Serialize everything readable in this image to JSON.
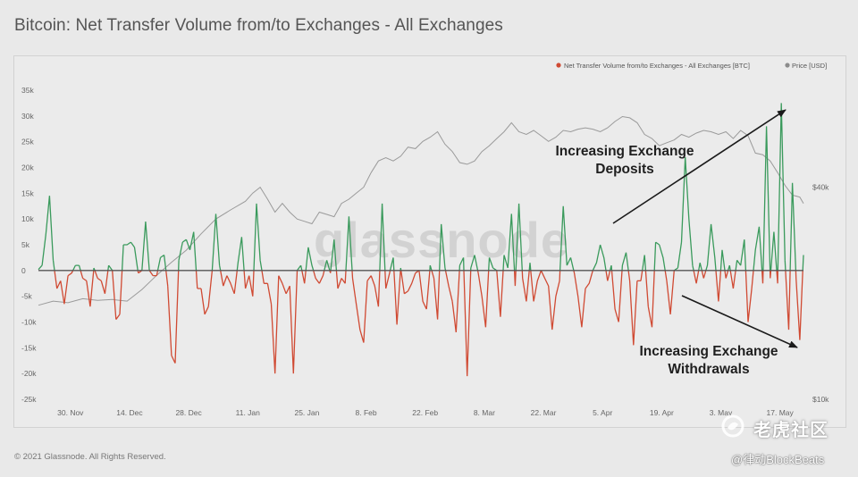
{
  "page": {
    "title": "Bitcoin: Net Transfer Volume from/to Exchanges - All Exchanges",
    "copyright": "© 2021 Glassnode. All Rights Reserved.",
    "watermark_text": "glassnode",
    "community_watermark": "老虎社区",
    "handle_watermark": "@律动BlockBeats"
  },
  "chart_data": {
    "type": "line",
    "legend": [
      {
        "label": "Net Transfer Volume from/to Exchanges - All Exchanges [BTC]",
        "color": "#d04a33"
      },
      {
        "label": "Price [USD]",
        "color": "#8c8c8c"
      }
    ],
    "legend_position": "top-right",
    "colors": {
      "positive": "#3a9a5c",
      "negative": "#d04a33",
      "price": "#9a9a9a",
      "zero_line": "#555555"
    },
    "x_ticks": [
      "30. Nov",
      "14. Dec",
      "28. Dec",
      "11. Jan",
      "25. Jan",
      "8. Feb",
      "22. Feb",
      "8. Mar",
      "22. Mar",
      "5. Apr",
      "19. Apr",
      "3. May",
      "17. May"
    ],
    "x_domain": [
      "2020-11-22",
      "2021-05-23"
    ],
    "y_left": {
      "ticks": [
        "35k",
        "30k",
        "25k",
        "20k",
        "15k",
        "10k",
        "5k",
        "0",
        "-5k",
        "-10k",
        "-15k",
        "-20k",
        "-25k"
      ],
      "min": -25000,
      "max": 35000
    },
    "y_right": {
      "ticks": [
        "$40k",
        "$10k"
      ],
      "scale": "log"
    },
    "grid": false,
    "series": [
      {
        "name": "Net Transfer Volume from/to Exchanges - All Exchanges [BTC]",
        "axis": "left",
        "points": [
          [
            0,
            200
          ],
          [
            1,
            1000
          ],
          [
            2,
            7000
          ],
          [
            3,
            14500
          ],
          [
            4,
            2000
          ],
          [
            5,
            -3500
          ],
          [
            6,
            -2000
          ],
          [
            7,
            -6500
          ],
          [
            8,
            -1000
          ],
          [
            9,
            -500
          ],
          [
            10,
            1000
          ],
          [
            11,
            1000
          ],
          [
            12,
            -1500
          ],
          [
            13,
            -2000
          ],
          [
            14,
            -7000
          ],
          [
            15,
            500
          ],
          [
            16,
            -1500
          ],
          [
            17,
            -2000
          ],
          [
            18,
            -4500
          ],
          [
            19,
            1000
          ],
          [
            20,
            0
          ],
          [
            21,
            -9500
          ],
          [
            22,
            -8500
          ],
          [
            23,
            5000
          ],
          [
            24,
            5000
          ],
          [
            25,
            5500
          ],
          [
            26,
            4500
          ],
          [
            27,
            -500
          ],
          [
            28,
            0
          ],
          [
            29,
            9500
          ],
          [
            30,
            0
          ],
          [
            31,
            -1000
          ],
          [
            32,
            -1000
          ],
          [
            33,
            2500
          ],
          [
            34,
            3000
          ],
          [
            35,
            -3000
          ],
          [
            36,
            -16500
          ],
          [
            37,
            -18000
          ],
          [
            38,
            2000
          ],
          [
            39,
            5500
          ],
          [
            40,
            6000
          ],
          [
            41,
            4000
          ],
          [
            42,
            7500
          ],
          [
            43,
            -3500
          ],
          [
            44,
            -3500
          ],
          [
            45,
            -8500
          ],
          [
            46,
            -7000
          ],
          [
            47,
            0
          ],
          [
            48,
            11000
          ],
          [
            49,
            1000
          ],
          [
            50,
            -3000
          ],
          [
            51,
            -1000
          ],
          [
            52,
            -2500
          ],
          [
            53,
            -4500
          ],
          [
            54,
            1500
          ],
          [
            55,
            6500
          ],
          [
            56,
            -3500
          ],
          [
            57,
            -1000
          ],
          [
            58,
            -5000
          ],
          [
            59,
            13000
          ],
          [
            60,
            2000
          ],
          [
            61,
            -2500
          ],
          [
            62,
            -2500
          ],
          [
            63,
            -6500
          ],
          [
            64,
            -20000
          ],
          [
            65,
            -1000
          ],
          [
            66,
            -2500
          ],
          [
            67,
            -4500
          ],
          [
            68,
            -3000
          ],
          [
            69,
            -20000
          ],
          [
            70,
            0
          ],
          [
            71,
            1000
          ],
          [
            72,
            -2500
          ],
          [
            73,
            4500
          ],
          [
            74,
            1000
          ],
          [
            75,
            -1500
          ],
          [
            76,
            -2500
          ],
          [
            77,
            -1000
          ],
          [
            78,
            2000
          ],
          [
            79,
            -500
          ],
          [
            80,
            6000
          ],
          [
            81,
            -3500
          ],
          [
            82,
            -1500
          ],
          [
            83,
            -2500
          ],
          [
            84,
            10500
          ],
          [
            85,
            -1500
          ],
          [
            86,
            -6500
          ],
          [
            87,
            -11500
          ],
          [
            88,
            -14000
          ],
          [
            89,
            -2000
          ],
          [
            90,
            -1000
          ],
          [
            91,
            -3000
          ],
          [
            92,
            -7000
          ],
          [
            93,
            13000
          ],
          [
            94,
            -3500
          ],
          [
            95,
            -500
          ],
          [
            96,
            2500
          ],
          [
            97,
            -10500
          ],
          [
            98,
            500
          ],
          [
            99,
            -4500
          ],
          [
            100,
            -4000
          ],
          [
            101,
            -2500
          ],
          [
            102,
            -500
          ],
          [
            103,
            0
          ],
          [
            104,
            -6000
          ],
          [
            105,
            -7500
          ],
          [
            106,
            1000
          ],
          [
            107,
            -1500
          ],
          [
            108,
            -9500
          ],
          [
            109,
            9000
          ],
          [
            110,
            500
          ],
          [
            111,
            -3000
          ],
          [
            112,
            -6000
          ],
          [
            113,
            -12000
          ],
          [
            114,
            1000
          ],
          [
            115,
            2500
          ],
          [
            116,
            -20500
          ],
          [
            117,
            500
          ],
          [
            118,
            3000
          ],
          [
            119,
            -500
          ],
          [
            120,
            -5000
          ],
          [
            121,
            -11000
          ],
          [
            122,
            2500
          ],
          [
            123,
            500
          ],
          [
            124,
            0
          ],
          [
            125,
            -9000
          ],
          [
            126,
            3000
          ],
          [
            127,
            500
          ],
          [
            128,
            11000
          ],
          [
            129,
            -3000
          ],
          [
            130,
            13000
          ],
          [
            131,
            -1500
          ],
          [
            132,
            -6000
          ],
          [
            133,
            1500
          ],
          [
            134,
            -6000
          ],
          [
            135,
            -2000
          ],
          [
            136,
            0
          ],
          [
            137,
            -1500
          ],
          [
            138,
            -3000
          ],
          [
            139,
            -11500
          ],
          [
            140,
            -5000
          ],
          [
            141,
            -2000
          ],
          [
            142,
            12500
          ],
          [
            143,
            1000
          ],
          [
            144,
            2500
          ],
          [
            145,
            -500
          ],
          [
            146,
            -5000
          ],
          [
            147,
            -11000
          ],
          [
            148,
            -3500
          ],
          [
            149,
            -2500
          ],
          [
            150,
            0
          ],
          [
            151,
            1500
          ],
          [
            152,
            5000
          ],
          [
            153,
            2500
          ],
          [
            154,
            -2000
          ],
          [
            155,
            1000
          ],
          [
            156,
            -7500
          ],
          [
            157,
            -10000
          ],
          [
            158,
            1000
          ],
          [
            159,
            3500
          ],
          [
            160,
            -2000
          ],
          [
            161,
            -14500
          ],
          [
            162,
            -2000
          ],
          [
            163,
            -2000
          ],
          [
            164,
            3000
          ],
          [
            165,
            -7000
          ],
          [
            166,
            -11000
          ],
          [
            167,
            5500
          ],
          [
            168,
            5000
          ],
          [
            169,
            2500
          ],
          [
            170,
            -2000
          ],
          [
            171,
            -8500
          ],
          [
            172,
            0
          ],
          [
            173,
            500
          ],
          [
            174,
            5500
          ],
          [
            175,
            22000
          ],
          [
            176,
            10000
          ],
          [
            177,
            1000
          ],
          [
            178,
            -2500
          ],
          [
            179,
            1500
          ],
          [
            180,
            -1500
          ],
          [
            181,
            1000
          ],
          [
            182,
            9000
          ],
          [
            183,
            2500
          ],
          [
            184,
            -6000
          ],
          [
            185,
            4000
          ],
          [
            186,
            -1500
          ],
          [
            187,
            1000
          ],
          [
            188,
            -3500
          ],
          [
            189,
            2000
          ],
          [
            190,
            1000
          ],
          [
            191,
            6000
          ],
          [
            192,
            -10000
          ],
          [
            193,
            -3500
          ],
          [
            194,
            4000
          ],
          [
            195,
            8500
          ],
          [
            196,
            -2500
          ],
          [
            197,
            28000
          ],
          [
            198,
            -1500
          ],
          [
            199,
            7500
          ],
          [
            200,
            -2500
          ],
          [
            201,
            32500
          ],
          [
            202,
            2000
          ],
          [
            203,
            -11500
          ],
          [
            204,
            17000
          ],
          [
            205,
            -1500
          ],
          [
            206,
            -13500
          ],
          [
            207,
            3000
          ]
        ]
      },
      {
        "name": "Price [USD]",
        "axis": "right",
        "points": [
          [
            0,
            18500
          ],
          [
            4,
            19000
          ],
          [
            8,
            18800
          ],
          [
            12,
            19300
          ],
          [
            16,
            19100
          ],
          [
            20,
            19200
          ],
          [
            24,
            19000
          ],
          [
            28,
            20500
          ],
          [
            32,
            22500
          ],
          [
            36,
            24500
          ],
          [
            40,
            26500
          ],
          [
            44,
            29500
          ],
          [
            48,
            32500
          ],
          [
            52,
            34500
          ],
          [
            56,
            36500
          ],
          [
            58,
            38500
          ],
          [
            60,
            40000
          ],
          [
            62,
            37000
          ],
          [
            64,
            34000
          ],
          [
            66,
            36000
          ],
          [
            68,
            34000
          ],
          [
            70,
            32500
          ],
          [
            72,
            32000
          ],
          [
            74,
            31500
          ],
          [
            76,
            34000
          ],
          [
            78,
            33500
          ],
          [
            80,
            33000
          ],
          [
            82,
            36000
          ],
          [
            84,
            37000
          ],
          [
            86,
            38500
          ],
          [
            88,
            40000
          ],
          [
            90,
            44000
          ],
          [
            92,
            47500
          ],
          [
            94,
            48500
          ],
          [
            96,
            47500
          ],
          [
            98,
            49000
          ],
          [
            100,
            52000
          ],
          [
            102,
            51500
          ],
          [
            104,
            54000
          ],
          [
            106,
            55500
          ],
          [
            108,
            57500
          ],
          [
            110,
            53000
          ],
          [
            112,
            50500
          ],
          [
            114,
            47000
          ],
          [
            116,
            46500
          ],
          [
            118,
            47500
          ],
          [
            120,
            50500
          ],
          [
            122,
            52500
          ],
          [
            124,
            55000
          ],
          [
            126,
            57500
          ],
          [
            128,
            61000
          ],
          [
            130,
            57500
          ],
          [
            132,
            56500
          ],
          [
            134,
            58000
          ],
          [
            136,
            56000
          ],
          [
            138,
            54000
          ],
          [
            140,
            55500
          ],
          [
            142,
            58000
          ],
          [
            144,
            57500
          ],
          [
            146,
            58500
          ],
          [
            148,
            59000
          ],
          [
            150,
            58500
          ],
          [
            152,
            57500
          ],
          [
            154,
            59000
          ],
          [
            156,
            61500
          ],
          [
            158,
            63500
          ],
          [
            160,
            63000
          ],
          [
            162,
            61000
          ],
          [
            164,
            56500
          ],
          [
            166,
            55000
          ],
          [
            168,
            52500
          ],
          [
            170,
            53500
          ],
          [
            172,
            54500
          ],
          [
            174,
            56500
          ],
          [
            176,
            55500
          ],
          [
            178,
            57000
          ],
          [
            180,
            58000
          ],
          [
            182,
            57500
          ],
          [
            184,
            56500
          ],
          [
            186,
            57500
          ],
          [
            188,
            55000
          ],
          [
            190,
            58000
          ],
          [
            192,
            56000
          ],
          [
            194,
            50000
          ],
          [
            196,
            49500
          ],
          [
            198,
            47500
          ],
          [
            200,
            44000
          ],
          [
            202,
            40500
          ],
          [
            204,
            38000
          ],
          [
            206,
            37500
          ],
          [
            207,
            36000
          ]
        ]
      }
    ],
    "annotations": [
      {
        "text": [
          "Increasing Exchange",
          "Deposits"
        ]
      },
      {
        "text": [
          "Increasing Exchange",
          "Withdrawals"
        ]
      }
    ]
  }
}
